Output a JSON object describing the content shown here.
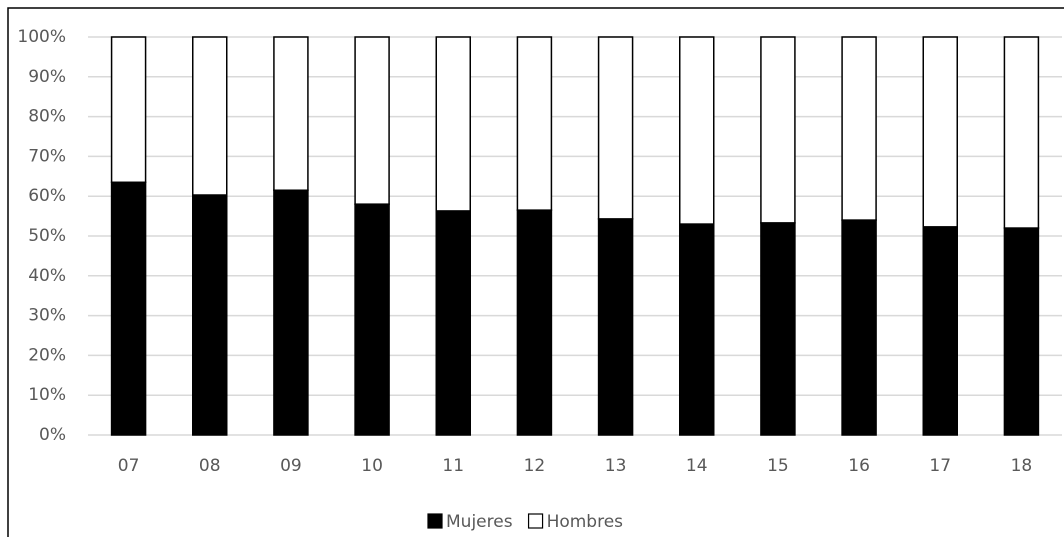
{
  "chart_data": {
    "type": "stacked_bar",
    "categories": [
      "07",
      "08",
      "09",
      "10",
      "11",
      "12",
      "13",
      "14",
      "15",
      "16",
      "17",
      "18"
    ],
    "series": [
      {
        "name": "Mujeres",
        "color": "#000000",
        "values": [
          63.5,
          60.3,
          61.5,
          58,
          56.3,
          56.5,
          54.3,
          53,
          53.3,
          54,
          52.3,
          52
        ]
      },
      {
        "name": "Hombres",
        "color": "#ffffff",
        "values": [
          36.5,
          39.7,
          38.5,
          42,
          43.7,
          43.5,
          45.7,
          47,
          46.7,
          46,
          47.7,
          48
        ]
      }
    ],
    "ylim": [
      0,
      100
    ],
    "yticks": [
      {
        "value": 0,
        "label": "0%"
      },
      {
        "value": 10,
        "label": "10%"
      },
      {
        "value": 20,
        "label": "20%"
      },
      {
        "value": 30,
        "label": "30%"
      },
      {
        "value": 40,
        "label": "40%"
      },
      {
        "value": 50,
        "label": "50%"
      },
      {
        "value": 60,
        "label": "60%"
      },
      {
        "value": 70,
        "label": "70%"
      },
      {
        "value": 80,
        "label": "80%"
      },
      {
        "value": 90,
        "label": "90%"
      },
      {
        "value": 100,
        "label": "100%"
      }
    ],
    "grid": true,
    "legend": "bottom"
  }
}
